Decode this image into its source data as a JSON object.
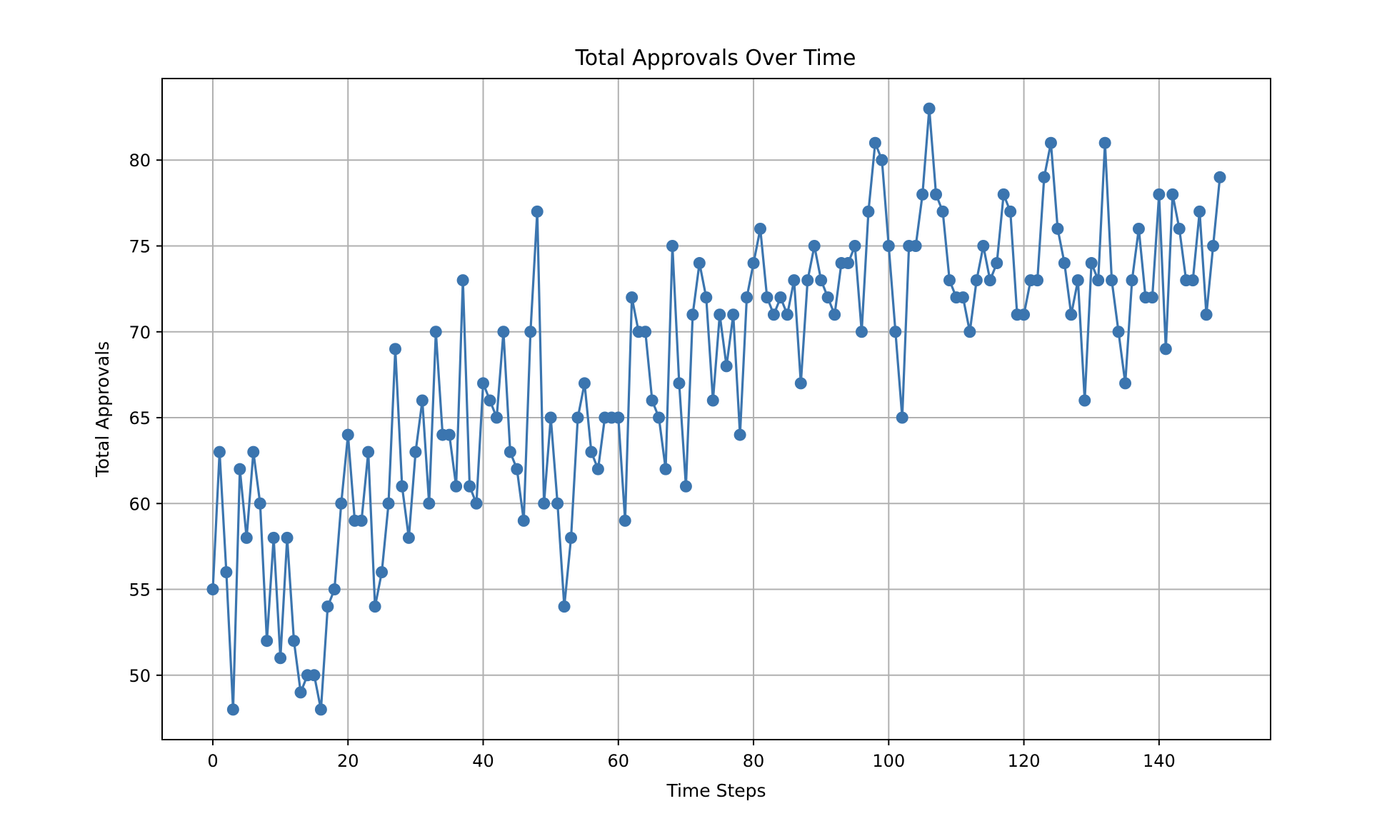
{
  "chart_data": {
    "type": "line",
    "title": "Total Approvals Over Time",
    "xlabel": "Time Steps",
    "ylabel": "Total Approvals",
    "xlim": [
      -7.5,
      156.5
    ],
    "ylim": [
      46.25,
      84.75
    ],
    "xticks": [
      0,
      20,
      40,
      60,
      80,
      100,
      120,
      140
    ],
    "yticks": [
      50,
      55,
      60,
      65,
      70,
      75,
      80
    ],
    "grid": true,
    "marker": "circle",
    "series": [
      {
        "color": "#3b75af",
        "x": [
          0,
          1,
          2,
          3,
          4,
          5,
          6,
          7,
          8,
          9,
          10,
          11,
          12,
          13,
          14,
          15,
          16,
          17,
          18,
          19,
          20,
          21,
          22,
          23,
          24,
          25,
          26,
          27,
          28,
          29,
          30,
          31,
          32,
          33,
          34,
          35,
          36,
          37,
          38,
          39,
          40,
          41,
          42,
          43,
          44,
          45,
          46,
          47,
          48,
          49,
          50,
          51,
          52,
          53,
          54,
          55,
          56,
          57,
          58,
          59,
          60,
          61,
          62,
          63,
          64,
          65,
          66,
          67,
          68,
          69,
          70,
          71,
          72,
          73,
          74,
          75,
          76,
          77,
          78,
          79,
          80,
          81,
          82,
          83,
          84,
          85,
          86,
          87,
          88,
          89,
          90,
          91,
          92,
          93,
          94,
          95,
          96,
          97,
          98,
          99,
          100,
          101,
          102,
          103,
          104,
          105,
          106,
          107,
          108,
          109,
          110,
          111,
          112,
          113,
          114,
          115,
          116,
          117,
          118,
          119,
          120,
          121,
          122,
          123,
          124,
          125,
          126,
          127,
          128,
          129,
          130,
          131,
          132,
          133,
          134,
          135,
          136,
          137,
          138,
          139,
          140,
          141,
          142,
          143,
          144,
          145,
          146,
          147,
          148,
          149
        ],
        "values": [
          55,
          63,
          56,
          48,
          62,
          58,
          63,
          60,
          52,
          58,
          51,
          58,
          52,
          49,
          50,
          50,
          48,
          54,
          55,
          60,
          64,
          59,
          59,
          63,
          54,
          56,
          60,
          69,
          61,
          58,
          63,
          66,
          60,
          70,
          64,
          64,
          61,
          73,
          61,
          60,
          67,
          66,
          65,
          70,
          63,
          62,
          59,
          70,
          77,
          60,
          65,
          60,
          54,
          58,
          65,
          67,
          63,
          62,
          65,
          65,
          65,
          59,
          72,
          70,
          70,
          66,
          65,
          62,
          75,
          67,
          61,
          71,
          74,
          72,
          66,
          71,
          68,
          71,
          64,
          72,
          74,
          76,
          72,
          71,
          72,
          71,
          73,
          67,
          73,
          75,
          73,
          72,
          71,
          74,
          74,
          75,
          70,
          77,
          81,
          80,
          75,
          70,
          65,
          75,
          75,
          78,
          83,
          78,
          77,
          73,
          72,
          72,
          70,
          73,
          75,
          73,
          74,
          78,
          77,
          71,
          71,
          73,
          73,
          79,
          81,
          76,
          74,
          71,
          73,
          66,
          74,
          73,
          81,
          73,
          70,
          67,
          73,
          76,
          72,
          72,
          78,
          69,
          78,
          76,
          73,
          73,
          77,
          71,
          75,
          79
        ]
      }
    ]
  }
}
